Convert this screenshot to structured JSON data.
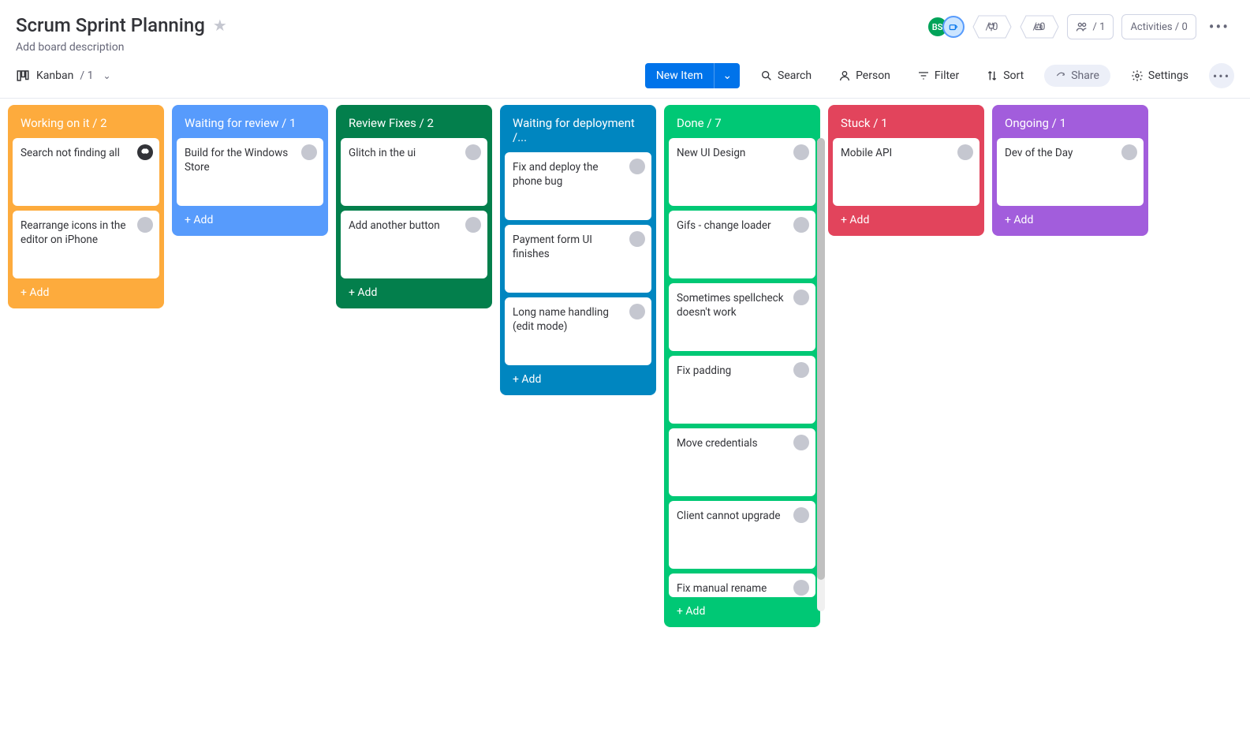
{
  "board": {
    "title": "Scrum Sprint Planning",
    "description_placeholder": "Add board description"
  },
  "header_stats": {
    "integrations": "/ 0",
    "automations": "/ 0",
    "members": "/ 1",
    "activities": "Activities / 0",
    "avatar1": {
      "text": "BS",
      "bg": "#00a359"
    },
    "avatar2": {
      "text": "",
      "bg": "#579bfc"
    }
  },
  "toolbar": {
    "view_name": "Kanban",
    "view_count": "/ 1",
    "new_item": "New Item",
    "search": "Search",
    "person": "Person",
    "filter": "Filter",
    "sort": "Sort",
    "share": "Share",
    "settings": "Settings"
  },
  "columns": [
    {
      "title": "Working on it / 2",
      "bg": "#fdab3d",
      "add": "+ Add",
      "cards": [
        {
          "text": "Search not finding all",
          "avatar": "dark"
        },
        {
          "text": "Rearrange icons in the editor on iPhone",
          "avatar": "grey"
        }
      ]
    },
    {
      "title": "Waiting for review / 1",
      "bg": "#579bfc",
      "add": "+ Add",
      "cards": [
        {
          "text": "Build for the Windows Store",
          "avatar": "grey"
        }
      ]
    },
    {
      "title": "Review Fixes / 2",
      "bg": "#037f4c",
      "add": "+ Add",
      "cards": [
        {
          "text": "Glitch in the ui",
          "avatar": "grey"
        },
        {
          "text": "Add another button",
          "avatar": "grey"
        }
      ]
    },
    {
      "title": "Waiting for deployment /...",
      "bg": "#0086c0",
      "add": "+ Add",
      "cards": [
        {
          "text": "Fix and deploy the phone bug",
          "avatar": "grey"
        },
        {
          "text": "Payment form UI finishes",
          "avatar": "grey"
        },
        {
          "text": "Long name handling (edit mode)",
          "avatar": "grey"
        }
      ]
    },
    {
      "title": "Done / 7",
      "bg": "#00c875",
      "add": "+ Add",
      "cards": [
        {
          "text": "New UI Design",
          "avatar": "grey"
        },
        {
          "text": "Gifs - change loader",
          "avatar": "grey"
        },
        {
          "text": "Sometimes spellcheck doesn't work",
          "avatar": "grey"
        },
        {
          "text": "Fix padding",
          "avatar": "grey"
        },
        {
          "text": "Move credentials",
          "avatar": "grey"
        },
        {
          "text": "Client cannot upgrade",
          "avatar": "grey"
        },
        {
          "text": "Fix manual rename",
          "avatar": "grey"
        }
      ]
    },
    {
      "title": "Stuck / 1",
      "bg": "#e2445c",
      "add": "+ Add",
      "cards": [
        {
          "text": "Mobile API",
          "avatar": "grey"
        }
      ]
    },
    {
      "title": "Ongoing / 1",
      "bg": "#a25ddc",
      "add": "+ Add",
      "cards": [
        {
          "text": "Dev of the Day",
          "avatar": "grey"
        }
      ]
    }
  ]
}
